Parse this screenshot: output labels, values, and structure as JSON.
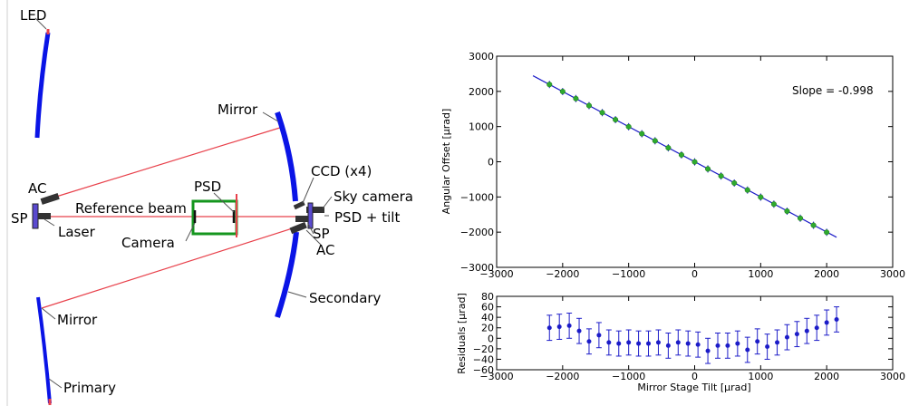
{
  "diagram": {
    "labels": {
      "led": "LED",
      "mirror_top": "Mirror",
      "ccd": "CCD (x4)",
      "sky_camera": "Sky camera",
      "ac_left": "AC",
      "psd": "PSD",
      "reference_beam": "Reference beam",
      "psd_tilt": "PSD + tilt",
      "sp_left": "SP",
      "laser": "Laser",
      "camera": "Camera",
      "sp_right": "SP",
      "ac_right": "AC",
      "secondary": "Secondary",
      "mirror_bottom": "Mirror",
      "primary": "Primary"
    },
    "colors": {
      "mirror": "#0a14e6",
      "beam": "#e8414b",
      "psd_box": "#14961e",
      "device": "#333333",
      "sp": "#5a4ad0"
    }
  },
  "chart_data": [
    {
      "type": "scatter",
      "ylabel": "Angular Offset [µrad]",
      "xlim": [
        -3000,
        3000
      ],
      "ylim": [
        -3000,
        3000
      ],
      "xticks": [
        "−3000",
        "−2000",
        "−1000",
        "0",
        "1000",
        "2000",
        "3000"
      ],
      "yticks": [
        "3000",
        "2000",
        "1000",
        "0",
        "−1000",
        "−2000",
        "−3000"
      ],
      "annotation": "Slope = -0.998",
      "fit_line": {
        "x": [
          -2450,
          2150
        ],
        "y": [
          2445,
          -2146
        ]
      },
      "x": [
        -2200,
        -2000,
        -1800,
        -1600,
        -1400,
        -1200,
        -1000,
        -800,
        -600,
        -400,
        -200,
        0,
        200,
        400,
        600,
        800,
        1000,
        1200,
        1400,
        1600,
        1800,
        2000
      ],
      "y": [
        2196,
        1996,
        1796,
        1596,
        1396,
        1196,
        996,
        796,
        596,
        396,
        196,
        -4,
        -204,
        -404,
        -604,
        -804,
        -1004,
        -1204,
        -1404,
        -1604,
        -1804,
        -2004
      ],
      "colors": {
        "points": "#2eaa2e",
        "line": "#1c1cc8",
        "errbar": "#1c1cc8"
      }
    },
    {
      "type": "scatter",
      "xlabel": "Mirror Stage Tilt [µrad]",
      "ylabel": "Residuals [µrad]",
      "xlim": [
        -3000,
        3000
      ],
      "ylim": [
        -60,
        80
      ],
      "xticks": [
        "−3000",
        "−2000",
        "−1000",
        "0",
        "1000",
        "2000",
        "3000"
      ],
      "yticks": [
        "80",
        "60",
        "40",
        "20",
        "0",
        "−20",
        "−40",
        "−60"
      ],
      "x": [
        -2200,
        -2050,
        -1900,
        -1750,
        -1600,
        -1450,
        -1300,
        -1150,
        -1000,
        -850,
        -700,
        -550,
        -400,
        -250,
        -100,
        50,
        200,
        350,
        500,
        650,
        800,
        950,
        1100,
        1250,
        1400,
        1550,
        1700,
        1850,
        2000,
        2150
      ],
      "y": [
        20,
        22,
        24,
        14,
        -6,
        6,
        -8,
        -10,
        -8,
        -10,
        -10,
        -8,
        -14,
        -8,
        -10,
        -12,
        -24,
        -14,
        -14,
        -10,
        -22,
        -6,
        -16,
        -8,
        2,
        8,
        14,
        20,
        30,
        36
      ],
      "err": 24,
      "colors": {
        "points": "#1c1cc8"
      }
    }
  ]
}
